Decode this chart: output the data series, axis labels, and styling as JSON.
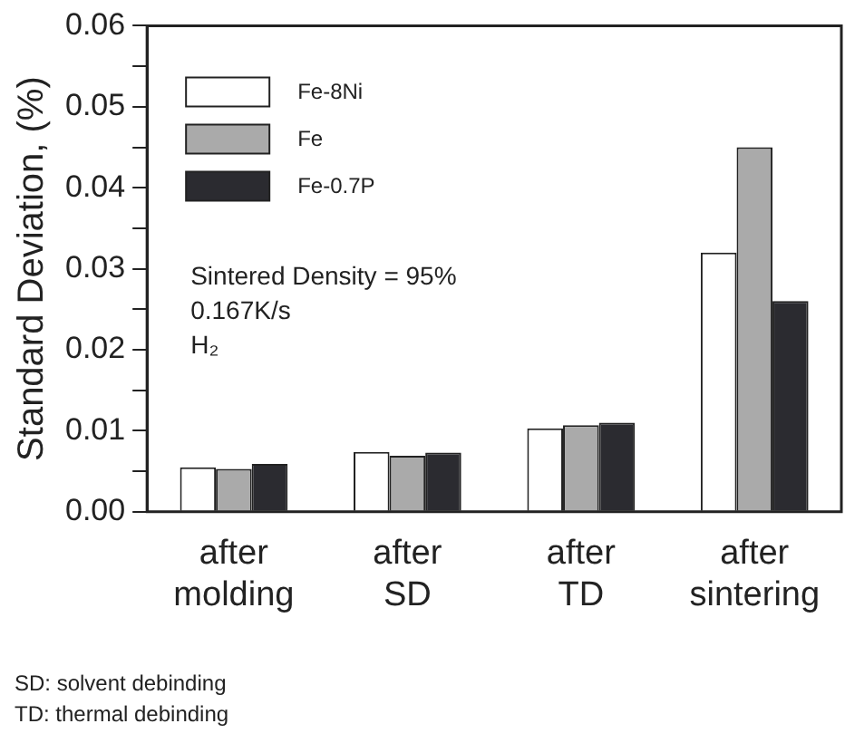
{
  "chart_data": {
    "type": "bar",
    "ylabel": "Standard Deviation, (%)",
    "categories": [
      "after molding",
      "after SD",
      "after TD",
      "after sintering"
    ],
    "series": [
      {
        "name": "Fe-8Ni",
        "color": "#ffffff",
        "values": [
          0.0055,
          0.0074,
          0.0103,
          0.032
        ]
      },
      {
        "name": "Fe",
        "color": "#aaaaaa",
        "values": [
          0.0053,
          0.0069,
          0.0107,
          0.045
        ]
      },
      {
        "name": "Fe-0.7P",
        "color": "#2b2b30",
        "values": [
          0.0059,
          0.0073,
          0.011,
          0.026
        ]
      }
    ],
    "ylim": [
      0,
      0.06
    ],
    "yticks": [
      {
        "value": 0,
        "label": "0.00"
      },
      {
        "value": 0.005,
        "label": null
      },
      {
        "value": 0.01,
        "label": "0.01"
      },
      {
        "value": 0.015,
        "label": null
      },
      {
        "value": 0.02,
        "label": "0.02"
      },
      {
        "value": 0.025,
        "label": null
      },
      {
        "value": 0.03,
        "label": "0.03"
      },
      {
        "value": 0.035,
        "label": null
      },
      {
        "value": 0.04,
        "label": "0.04"
      },
      {
        "value": 0.045,
        "label": null
      },
      {
        "value": 0.05,
        "label": "0.05"
      },
      {
        "value": 0.055,
        "label": null
      },
      {
        "value": 0.06,
        "label": "0.06"
      }
    ],
    "legend": "top left",
    "grid": false,
    "annotations": [
      "Sintered Density = 95%",
      "0.167K/s",
      "H₂",
      "SD: solvent debinding",
      "TD: thermal debinding"
    ]
  }
}
